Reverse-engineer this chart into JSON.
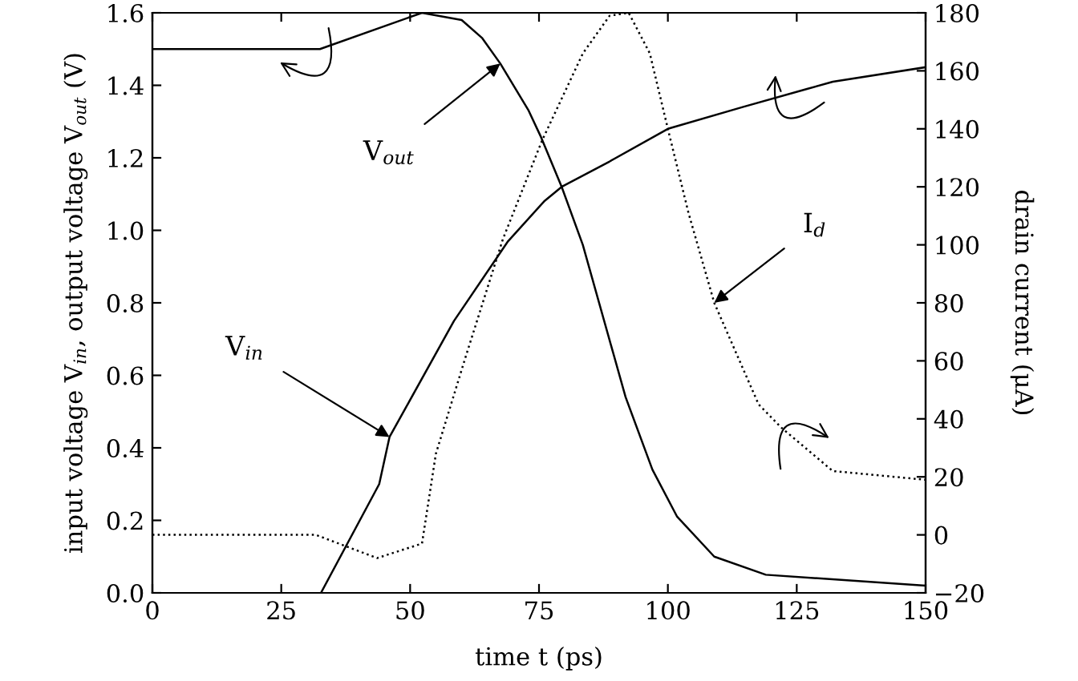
{
  "chart_data": {
    "type": "line",
    "xlabel": "time t (ps)",
    "ylabel": "input voltage V$_{in}$, output voltage V$_{out}$ (V)",
    "y2label": "drain current (μA)",
    "xlim": [
      0,
      150
    ],
    "xticks": [
      0,
      25,
      50,
      75,
      100,
      125,
      150
    ],
    "ylim": [
      0,
      1.6
    ],
    "yticks": [
      {
        "value": 0,
        "label": "0.0"
      },
      {
        "value": 0.2,
        "label": "0.2"
      },
      {
        "value": 0.4,
        "label": "0.4"
      },
      {
        "value": 0.6,
        "label": "0.6"
      },
      {
        "value": 0.8,
        "label": "0.8"
      },
      {
        "value": 1.0,
        "label": "1.0"
      },
      {
        "value": 1.2,
        "label": "1.2"
      },
      {
        "value": 1.4,
        "label": "1.4"
      },
      {
        "value": 1.6,
        "label": "1.6"
      }
    ],
    "y2lim": [
      -20,
      180
    ],
    "y2ticks": [
      {
        "value": -20,
        "label": "−20"
      },
      0,
      20,
      40,
      60,
      80,
      100,
      120,
      140,
      160,
      180
    ],
    "grid": false,
    "legend": false,
    "marker": "none",
    "series": [
      {
        "color": "#000000",
        "line_style": "solid",
        "x": [
          0,
          32.5,
          52.3,
          60,
          64,
          67.5,
          73,
          75.3,
          79.4,
          83.5,
          91.8,
          97,
          101.8,
          109,
          119,
          150
        ],
        "values": [
          1.5,
          1.5,
          1.6,
          1.58,
          1.53,
          1.46,
          1.33,
          1.26,
          1.12,
          0.96,
          0.54,
          0.34,
          0.21,
          0.1,
          0.05,
          0.02
        ]
      },
      {
        "color": "#000000",
        "line_style": "solid",
        "x": [
          32.7,
          44,
          46,
          58.5,
          69,
          76,
          79.4,
          88.7,
          100,
          114.5,
          127,
          132,
          150
        ],
        "values": [
          0,
          0.3,
          0.43,
          0.75,
          0.97,
          1.08,
          1.12,
          1.19,
          1.28,
          1.34,
          1.39,
          1.41,
          1.45
        ]
      },
      {
        "color": "#000000",
        "line_style": "dotted",
        "axis": "y2",
        "x": [
          0,
          31.7,
          43.6,
          52.3,
          55,
          60.7,
          68,
          75.6,
          83.5,
          88.7,
          92.4,
          96.5,
          100,
          104,
          109,
          117.6,
          122,
          132,
          150
        ],
        "values": [
          0,
          0,
          -8,
          -3,
          28,
          61,
          102,
          136,
          166,
          179,
          180,
          166,
          140,
          111,
          80,
          45,
          37,
          22,
          19
        ]
      }
    ],
    "annotations": [
      {
        "text": "V$_{out}$",
        "x": 67.5,
        "y": 1.46
      },
      {
        "text": "V$_{in}$",
        "x": 46,
        "y": 0.43
      },
      {
        "text": "I$_{d}$",
        "x": 109,
        "y": 0.8
      }
    ]
  }
}
